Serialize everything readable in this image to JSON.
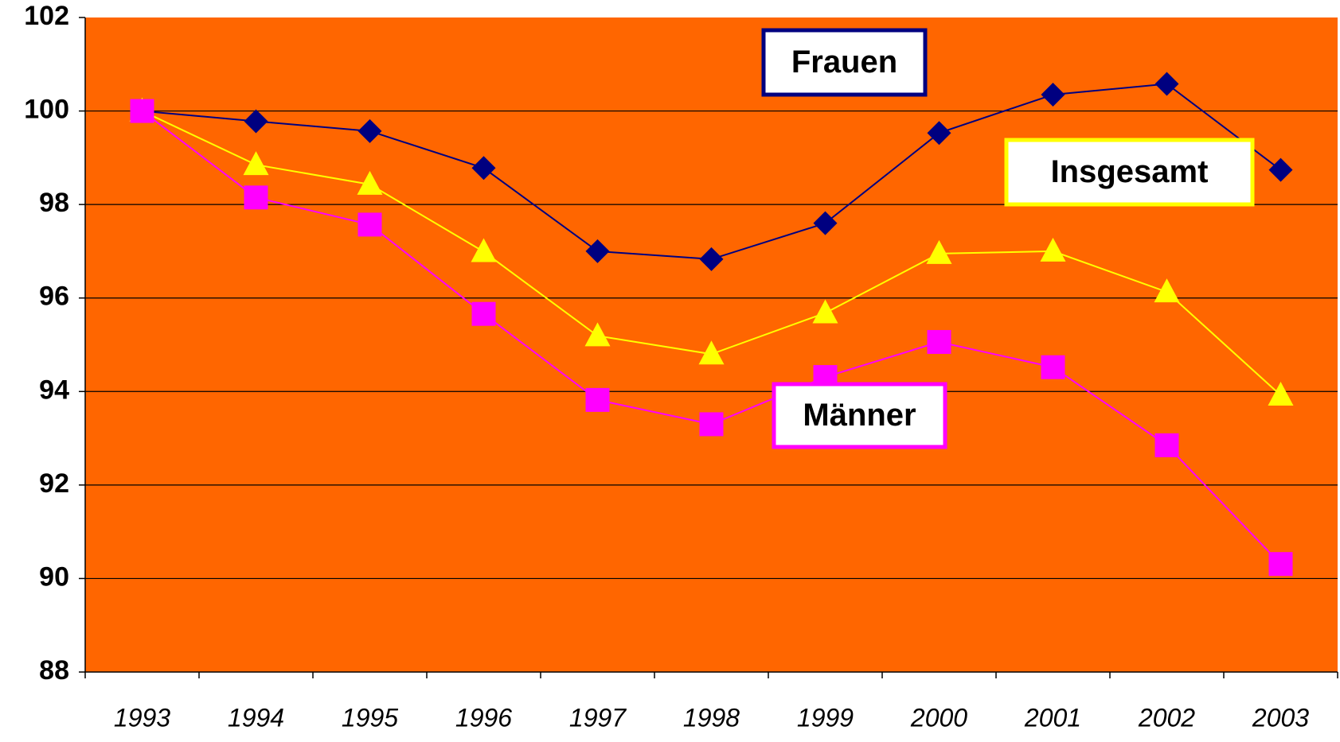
{
  "chart_data": {
    "type": "line",
    "categories": [
      "1993",
      "1994",
      "1995",
      "1996",
      "1997",
      "1998",
      "1999",
      "2000",
      "2001",
      "2002",
      "2003"
    ],
    "series": [
      {
        "name": "Frauen",
        "color": "#000080",
        "marker": "diamond",
        "values": [
          100,
          99.78,
          99.57,
          98.78,
          97.0,
          96.83,
          97.6,
          99.53,
          100.35,
          100.58,
          98.74
        ]
      },
      {
        "name": "Insgesamt",
        "color": "#FFFF00",
        "marker": "triangle",
        "values": [
          100,
          98.85,
          98.43,
          96.99,
          95.19,
          94.8,
          95.68,
          96.95,
          97.0,
          96.13,
          93.92
        ]
      },
      {
        "name": "Männer",
        "color": "#FF00FF",
        "marker": "square",
        "values": [
          100,
          98.15,
          97.57,
          95.66,
          93.82,
          93.3,
          94.31,
          95.06,
          94.52,
          92.85,
          90.31
        ]
      }
    ],
    "ylim": [
      88,
      102
    ],
    "yticks": [
      88,
      90,
      92,
      94,
      96,
      98,
      100,
      102
    ],
    "grid": true,
    "plot_background": "#FF6600"
  }
}
